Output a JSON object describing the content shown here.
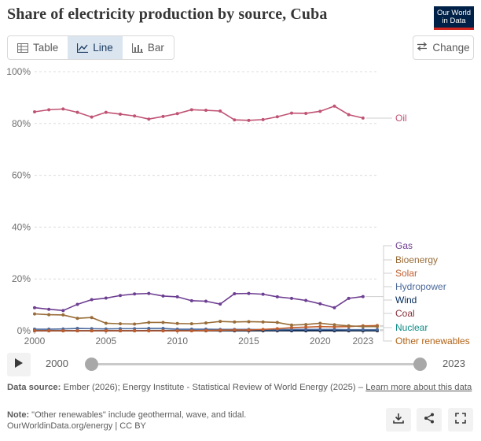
{
  "header": {
    "title": "Share of electricity production by source, Cuba",
    "logo_line1": "Our World",
    "logo_line2": "in Data"
  },
  "tabs": [
    {
      "label": "Table",
      "icon": "table-icon",
      "active": false
    },
    {
      "label": "Line",
      "icon": "line-chart-icon",
      "active": true
    },
    {
      "label": "Bar",
      "icon": "bar-chart-icon",
      "active": false
    }
  ],
  "change_button": {
    "label": "Change",
    "icon": "swap-arrows-icon"
  },
  "colors": {
    "Oil": "#c05374",
    "Gas": "#6d3e91",
    "Bioenergy": "#996d39",
    "Solar": "#c15e2e",
    "Hydropower": "#4c6a9c",
    "Wind": "#00295b",
    "Coal": "#883039",
    "Nuclear": "#0e8c85",
    "Other renewables": "#b16214"
  },
  "chart_data": {
    "type": "line",
    "x": [
      2000,
      2001,
      2002,
      2003,
      2004,
      2005,
      2006,
      2007,
      2008,
      2009,
      2010,
      2011,
      2012,
      2013,
      2014,
      2015,
      2016,
      2017,
      2018,
      2019,
      2020,
      2021,
      2022,
      2023,
      2024
    ],
    "xtick_labels": [
      "2000",
      "2005",
      "2010",
      "2015",
      "2020",
      "2023"
    ],
    "xtick_values": [
      2000,
      2005,
      2010,
      2015,
      2020,
      2023
    ],
    "ytick_labels": [
      "0%",
      "20%",
      "40%",
      "60%",
      "80%",
      "100%"
    ],
    "ytick_values": [
      0,
      20,
      40,
      60,
      80,
      100
    ],
    "ylim": [
      0,
      100
    ],
    "grid": true,
    "legend_placement": "right, inline labels",
    "series": [
      {
        "name": "Oil",
        "values": [
          84.5,
          85.3,
          85.6,
          84.3,
          82.5,
          84.3,
          83.6,
          82.9,
          81.7,
          82.7,
          83.8,
          85.3,
          85.1,
          84.8,
          81.4,
          81.2,
          81.5,
          82.6,
          84.0,
          83.9,
          84.7,
          86.7,
          83.4,
          82.1,
          null
        ]
      },
      {
        "name": "Gas",
        "values": [
          8.9,
          8.3,
          7.8,
          10.2,
          12.0,
          12.6,
          13.6,
          14.2,
          14.4,
          13.4,
          13.1,
          11.6,
          11.4,
          10.3,
          14.3,
          14.4,
          14.1,
          13.1,
          12.5,
          11.7,
          10.4,
          8.9,
          12.5,
          13.2,
          null
        ]
      },
      {
        "name": "Bioenergy",
        "values": [
          6.5,
          6.2,
          6.1,
          4.8,
          5.1,
          2.9,
          2.7,
          2.6,
          3.2,
          3.2,
          2.8,
          2.7,
          3.0,
          3.6,
          3.4,
          3.5,
          3.4,
          3.2,
          2.2,
          2.4,
          2.9,
          2.3,
          1.9,
          1.6,
          1.6
        ]
      },
      {
        "name": "Solar",
        "values": [
          0,
          0,
          0,
          0,
          0,
          0,
          0,
          0,
          0,
          0,
          0,
          0,
          0.1,
          0.2,
          0.3,
          0.3,
          0.5,
          0.8,
          1.2,
          1.4,
          1.6,
          1.5,
          1.6,
          1.9,
          2.0
        ]
      },
      {
        "name": "Hydropower",
        "values": [
          0.6,
          0.6,
          0.7,
          0.9,
          0.8,
          0.7,
          0.8,
          0.8,
          0.9,
          0.9,
          0.6,
          0.6,
          0.6,
          0.5,
          0.5,
          0.5,
          0.4,
          0.4,
          0.5,
          0.5,
          0.5,
          0.5,
          0.4,
          0.4,
          0.4
        ]
      },
      {
        "name": "Wind",
        "values": [
          0,
          0,
          0,
          0,
          0,
          0,
          0,
          0,
          0.1,
          0.1,
          0.1,
          0.1,
          0.1,
          0.1,
          0.1,
          0.1,
          0.1,
          0.1,
          0.1,
          0.1,
          0.1,
          0.1,
          0.1,
          0.1,
          0.1
        ]
      },
      {
        "name": "Coal",
        "values": [
          0,
          0,
          0,
          0,
          0,
          0,
          0,
          0,
          0,
          0,
          0,
          0,
          0,
          0,
          0,
          0,
          0,
          0,
          0,
          0,
          0,
          0,
          0,
          0,
          0
        ]
      },
      {
        "name": "Nuclear",
        "values": [
          0,
          0,
          0,
          0,
          0,
          0,
          0,
          0,
          0,
          0,
          0,
          0,
          0,
          0,
          0,
          0,
          0,
          0,
          0,
          0,
          0,
          0,
          0,
          0,
          0
        ]
      },
      {
        "name": "Other renewables",
        "values": [
          0,
          0,
          0,
          0,
          0,
          0,
          0,
          0,
          0,
          0,
          0,
          0,
          0,
          0,
          0,
          0,
          0,
          0,
          0,
          0,
          0,
          0,
          0,
          0,
          0
        ]
      }
    ]
  },
  "timeline": {
    "start_label": "2000",
    "end_label": "2023",
    "play_icon": "play-icon"
  },
  "footer": {
    "source_prefix": "Data source:",
    "source_text": " Ember (2026); Energy Institute - Statistical Review of World Energy (2025) – ",
    "source_link": "Learn more about this data",
    "note_prefix": "Note:",
    "note_text": " \"Other renewables\" include geothermal, wave, and tidal.",
    "url_text": "OurWorldinData.org/energy | CC BY",
    "download_icon": "download-icon",
    "share_icon": "share-icon",
    "fullscreen_icon": "fullscreen-icon"
  }
}
